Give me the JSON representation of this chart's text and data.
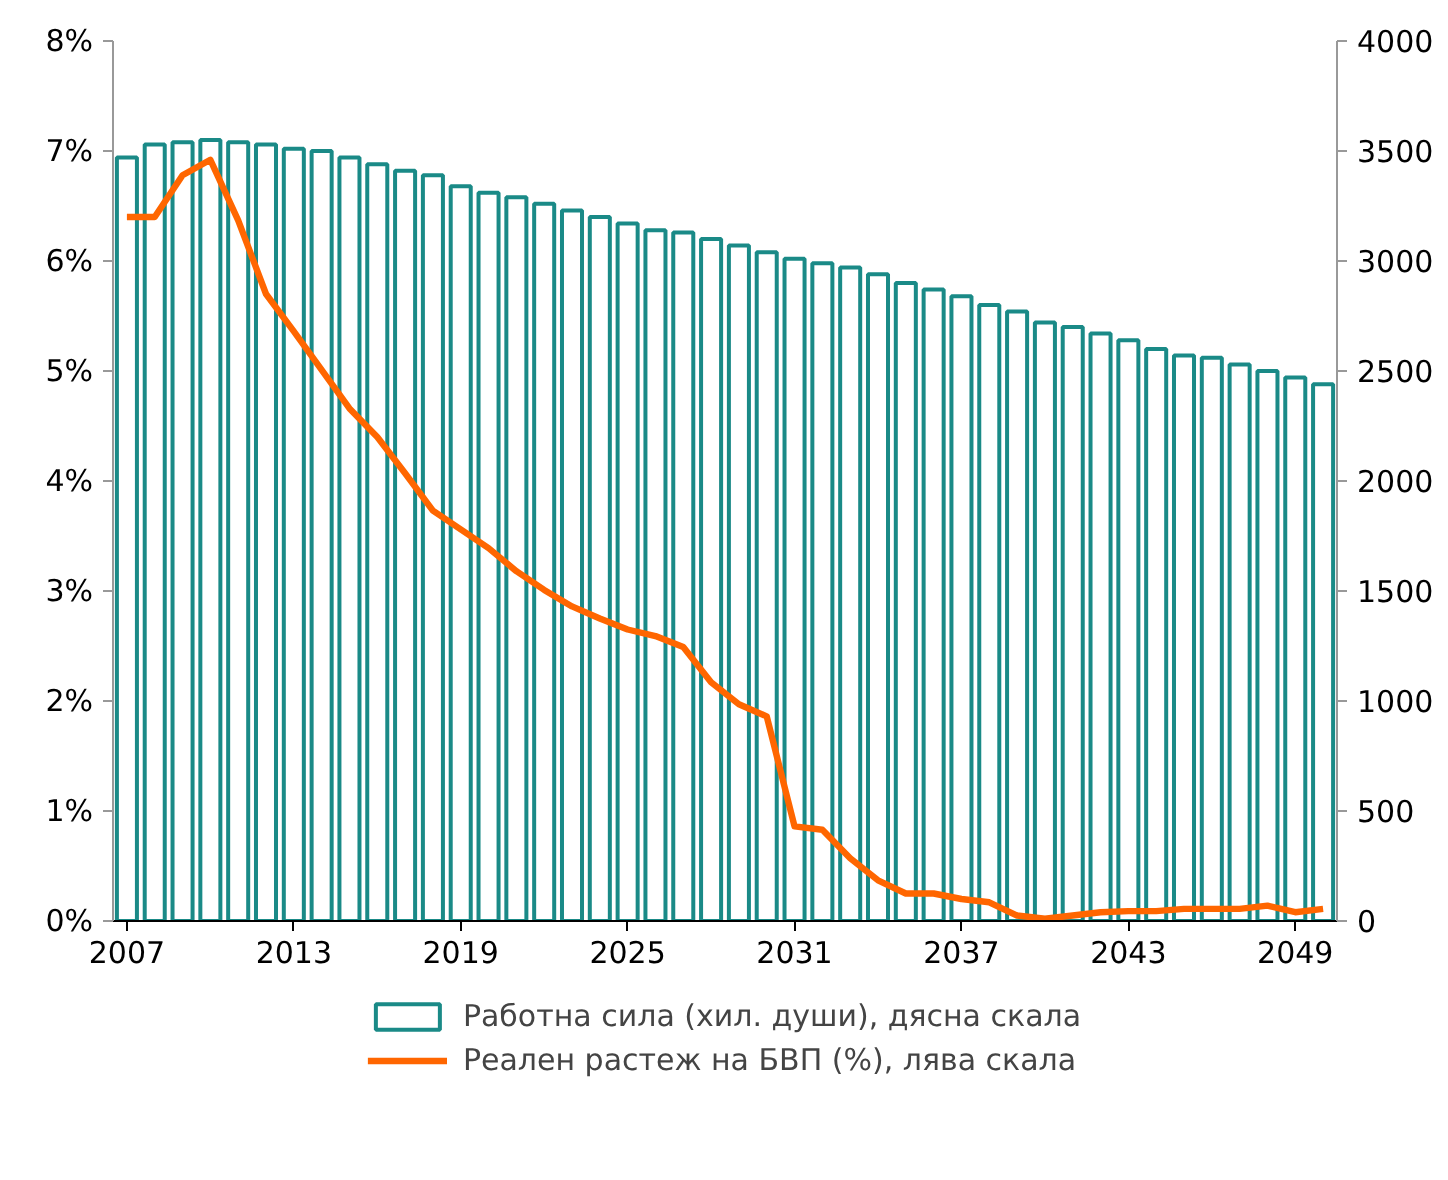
{
  "chart_data": {
    "type": "bar",
    "x": [
      2007,
      2008,
      2009,
      2010,
      2011,
      2012,
      2013,
      2014,
      2015,
      2016,
      2017,
      2018,
      2019,
      2020,
      2021,
      2022,
      2023,
      2024,
      2025,
      2026,
      2027,
      2028,
      2029,
      2030,
      2031,
      2032,
      2033,
      2034,
      2035,
      2036,
      2037,
      2038,
      2039,
      2040,
      2041,
      2042,
      2043,
      2044,
      2045,
      2046,
      2047,
      2048,
      2049,
      2050
    ],
    "series": [
      {
        "name": "Работна сила (хил. души), дясна скала",
        "axis": "y2",
        "color": "#1a8a87",
        "values": [
          3470,
          3530,
          3540,
          3550,
          3540,
          3530,
          3510,
          3500,
          3470,
          3440,
          3410,
          3390,
          3340,
          3310,
          3290,
          3260,
          3230,
          3200,
          3170,
          3140,
          3130,
          3100,
          3070,
          3040,
          3010,
          2990,
          2970,
          2940,
          2900,
          2870,
          2840,
          2800,
          2770,
          2720,
          2700,
          2670,
          2640,
          2600,
          2570,
          2560,
          2530,
          2500,
          2470,
          2440
        ]
      },
      {
        "name": "Реален растеж на БВП (%), лява скала",
        "type": "line",
        "axis": "y",
        "color": "#ff6600",
        "values": [
          6.4,
          6.4,
          6.78,
          6.92,
          6.37,
          5.7,
          5.36,
          5.01,
          4.66,
          4.4,
          4.07,
          3.73,
          3.56,
          3.39,
          3.18,
          3.01,
          2.86,
          2.75,
          2.65,
          2.59,
          2.49,
          2.17,
          1.97,
          1.86,
          0.86,
          0.83,
          0.57,
          0.37,
          0.25,
          0.25,
          0.2,
          0.17,
          0.05,
          0.02,
          0.05,
          0.08,
          0.09,
          0.09,
          0.11,
          0.11,
          0.11,
          0.14,
          0.08,
          0.11
        ]
      }
    ],
    "xlim": [
      2006.5,
      2050.5
    ],
    "xticks": [
      2007,
      2013,
      2019,
      2025,
      2031,
      2037,
      2043,
      2049
    ],
    "ylim": [
      0,
      8
    ],
    "yticks": [
      {
        "value": 0,
        "label": "0%"
      },
      {
        "value": 1,
        "label": "1%"
      },
      {
        "value": 2,
        "label": "2%"
      },
      {
        "value": 3,
        "label": "3%"
      },
      {
        "value": 4,
        "label": "4%"
      },
      {
        "value": 5,
        "label": "5%"
      },
      {
        "value": 6,
        "label": "6%"
      },
      {
        "value": 7,
        "label": "7%"
      },
      {
        "value": 8,
        "label": "8%"
      }
    ],
    "y2lim": [
      0,
      4000
    ],
    "y2ticks": [
      0,
      500,
      1000,
      1500,
      2000,
      2500,
      3000,
      3500,
      4000
    ],
    "grid": false,
    "legend": "bottom",
    "line_style": "solid",
    "marker": "none"
  }
}
